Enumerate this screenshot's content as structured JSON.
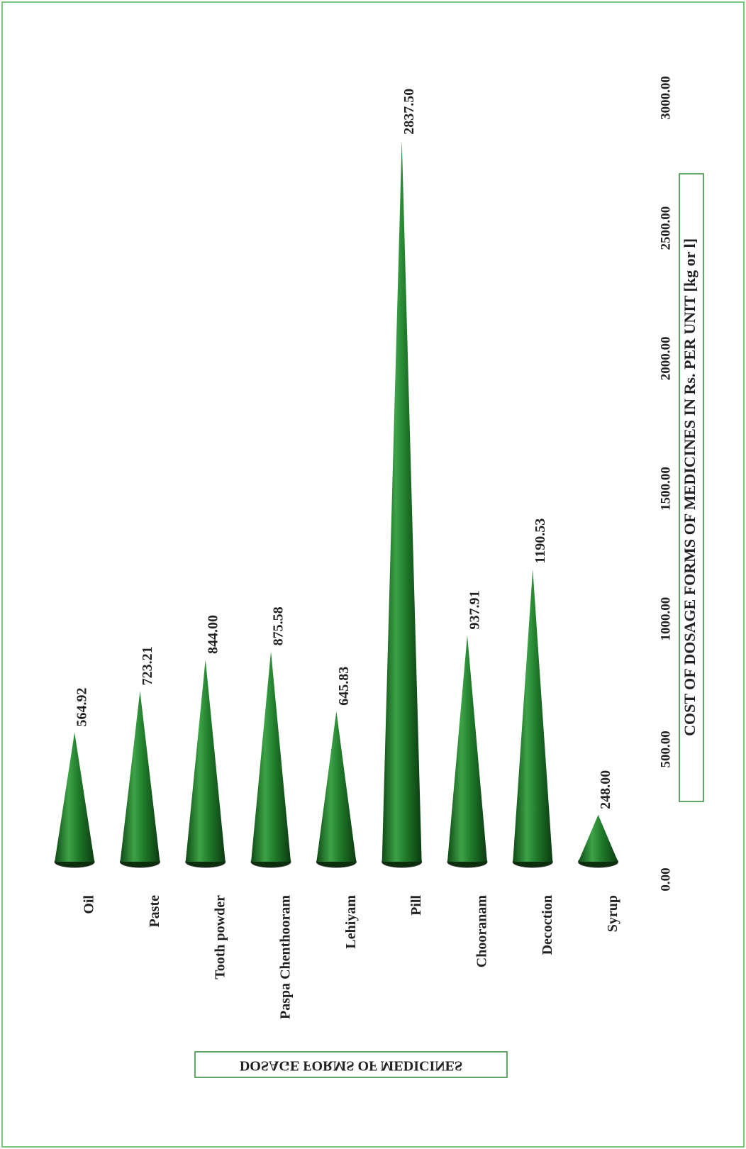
{
  "chart_data": {
    "type": "bar",
    "x_label": "DOSAGE FORMS OF MEDICINES",
    "y_label": "COST OF DOSAGE FORMS OF MEDICINES IN Rs. PER UNIT [kg or l]",
    "categories": [
      "Oil",
      "Paste",
      "Tooth powder",
      "Paspa Chenthooram",
      "Lehiyam",
      "Pill",
      "Chooranam",
      "Decoction",
      "Syrup"
    ],
    "values": [
      564.92,
      723.21,
      844,
      875.58,
      645.83,
      2837.5,
      937.91,
      1190.53,
      248
    ],
    "value_labels": [
      "564.92",
      "723.21",
      "844.00",
      "875.58",
      "645.83",
      "2837.50",
      "937.91",
      "1190.53",
      "248.00"
    ],
    "color": "#1f7a2a",
    "ylim": [
      0,
      3000
    ],
    "yticks": [
      {
        "value": 0,
        "label": "0.00"
      },
      {
        "value": 500,
        "label": "500.00"
      },
      {
        "value": 1000,
        "label": "1000.00"
      },
      {
        "value": 1500,
        "label": "1500.00"
      },
      {
        "value": 2000,
        "label": "2000.00"
      },
      {
        "value": 2500,
        "label": "2500.00"
      },
      {
        "value": 3000,
        "label": "3000.00"
      }
    ]
  }
}
